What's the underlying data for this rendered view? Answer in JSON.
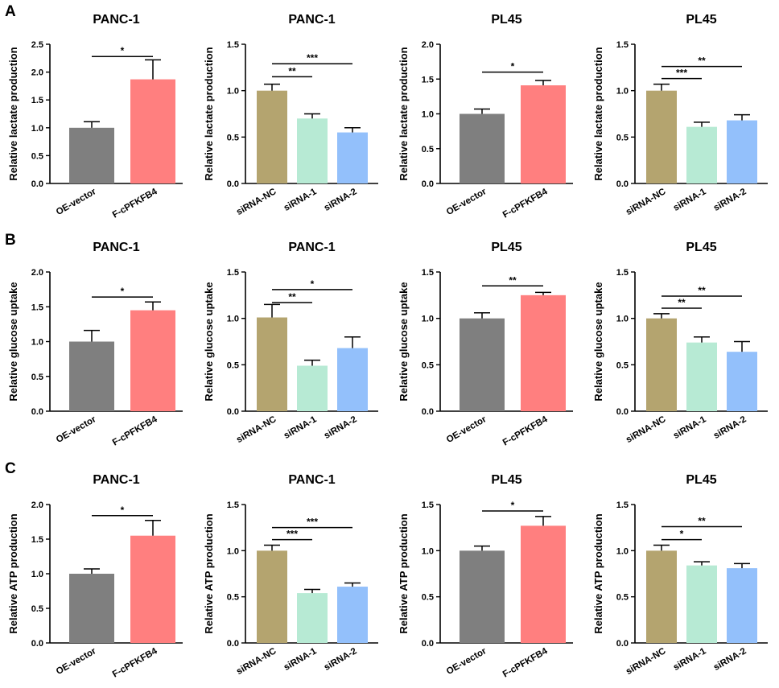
{
  "colors": {
    "oe_vector": "#7f7f7f",
    "f_cpfkfb4": "#ff7f7f",
    "sirna_nc": "#b4a46f",
    "sirna_1": "#b7ead4",
    "sirna_2": "#93c0fb"
  },
  "panel_labels": [
    "A",
    "B",
    "C"
  ],
  "chart_data": [
    {
      "type": "bar",
      "title": "PANC-1",
      "ylabel": "Relative lactate production",
      "ylim": [
        0,
        2.5
      ],
      "yticks": [
        "0.0",
        "0.5",
        "1.0",
        "1.5",
        "2.0",
        "2.5"
      ],
      "categories": [
        "OE-vector",
        "F-cPFKFB4"
      ],
      "values": [
        1.0,
        1.87
      ],
      "errors": [
        0.11,
        0.35
      ],
      "colors": [
        "#7f7f7f",
        "#ff7f7f"
      ],
      "significance": [
        {
          "from": 0,
          "to": 1,
          "y": 2.28,
          "label": "*"
        }
      ]
    },
    {
      "type": "bar",
      "title": "PANC-1",
      "ylabel": "Relative lactate production",
      "ylim": [
        0,
        1.5
      ],
      "yticks": [
        "0.0",
        "0.5",
        "1.0",
        "1.5"
      ],
      "categories": [
        "siRNA-NC",
        "siRNA-1",
        "siRNA-2"
      ],
      "values": [
        1.0,
        0.7,
        0.55
      ],
      "errors": [
        0.07,
        0.05,
        0.05
      ],
      "colors": [
        "#b4a46f",
        "#b7ead4",
        "#93c0fb"
      ],
      "significance": [
        {
          "from": 0,
          "to": 1,
          "y": 1.15,
          "label": "**"
        },
        {
          "from": 0,
          "to": 2,
          "y": 1.29,
          "label": "***"
        }
      ]
    },
    {
      "type": "bar",
      "title": "PL45",
      "ylabel": "Relative lactate production",
      "ylim": [
        0,
        2.0
      ],
      "yticks": [
        "0.0",
        "0.5",
        "1.0",
        "1.5",
        "2.0"
      ],
      "categories": [
        "OE-vector",
        "F-cPFKFB4"
      ],
      "values": [
        1.0,
        1.41
      ],
      "errors": [
        0.07,
        0.07
      ],
      "colors": [
        "#7f7f7f",
        "#ff7f7f"
      ],
      "significance": [
        {
          "from": 0,
          "to": 1,
          "y": 1.6,
          "label": "*"
        }
      ]
    },
    {
      "type": "bar",
      "title": "PL45",
      "ylabel": "Relative lactate production",
      "ylim": [
        0,
        1.5
      ],
      "yticks": [
        "0.0",
        "0.5",
        "1.0",
        "1.5"
      ],
      "categories": [
        "siRNA-NC",
        "siRNA-1",
        "siRNA-2"
      ],
      "values": [
        1.0,
        0.61,
        0.68
      ],
      "errors": [
        0.07,
        0.05,
        0.06
      ],
      "colors": [
        "#b4a46f",
        "#b7ead4",
        "#93c0fb"
      ],
      "significance": [
        {
          "from": 0,
          "to": 1,
          "y": 1.13,
          "label": "***"
        },
        {
          "from": 0,
          "to": 2,
          "y": 1.26,
          "label": "**"
        }
      ]
    },
    {
      "type": "bar",
      "title": "PANC-1",
      "ylabel": "Relative glucose uptake",
      "ylim": [
        0,
        2.0
      ],
      "yticks": [
        "0.0",
        "0.5",
        "1.0",
        "1.5",
        "2.0"
      ],
      "categories": [
        "OE-vector",
        "F-cPFKFB4"
      ],
      "values": [
        1.0,
        1.45
      ],
      "errors": [
        0.16,
        0.12
      ],
      "colors": [
        "#7f7f7f",
        "#ff7f7f"
      ],
      "significance": [
        {
          "from": 0,
          "to": 1,
          "y": 1.64,
          "label": "*"
        }
      ]
    },
    {
      "type": "bar",
      "title": "PANC-1",
      "ylabel": "Relative glucose uptake",
      "ylim": [
        0,
        1.5
      ],
      "yticks": [
        "0.0",
        "0.5",
        "1.0",
        "1.5"
      ],
      "categories": [
        "siRNA-NC",
        "siRNA-1",
        "siRNA-2"
      ],
      "values": [
        1.01,
        0.49,
        0.68
      ],
      "errors": [
        0.14,
        0.06,
        0.12
      ],
      "colors": [
        "#b4a46f",
        "#b7ead4",
        "#93c0fb"
      ],
      "significance": [
        {
          "from": 0,
          "to": 1,
          "y": 1.17,
          "label": "**"
        },
        {
          "from": 0,
          "to": 2,
          "y": 1.31,
          "label": "*"
        }
      ]
    },
    {
      "type": "bar",
      "title": "PL45",
      "ylabel": "Relative glucose uptake",
      "ylim": [
        0,
        1.5
      ],
      "yticks": [
        "0.0",
        "0.5",
        "1.0",
        "1.5"
      ],
      "categories": [
        "OE-vector",
        "F-cPFKFB4"
      ],
      "values": [
        1.0,
        1.25
      ],
      "errors": [
        0.06,
        0.03
      ],
      "colors": [
        "#7f7f7f",
        "#ff7f7f"
      ],
      "significance": [
        {
          "from": 0,
          "to": 1,
          "y": 1.35,
          "label": "**"
        }
      ]
    },
    {
      "type": "bar",
      "title": "PL45",
      "ylabel": "Relative glucose uptake",
      "ylim": [
        0,
        1.5
      ],
      "yticks": [
        "0.0",
        "0.5",
        "1.0",
        "1.5"
      ],
      "categories": [
        "siRNA-NC",
        "siRNA-1",
        "siRNA-2"
      ],
      "values": [
        1.0,
        0.74,
        0.64
      ],
      "errors": [
        0.05,
        0.06,
        0.11
      ],
      "colors": [
        "#b4a46f",
        "#b7ead4",
        "#93c0fb"
      ],
      "significance": [
        {
          "from": 0,
          "to": 1,
          "y": 1.11,
          "label": "**"
        },
        {
          "from": 0,
          "to": 2,
          "y": 1.24,
          "label": "**"
        }
      ]
    },
    {
      "type": "bar",
      "title": "PANC-1",
      "ylabel": "Relative ATP production",
      "ylim": [
        0,
        2.0
      ],
      "yticks": [
        "0.0",
        "0.5",
        "1.0",
        "1.5",
        "2.0"
      ],
      "categories": [
        "OE-vector",
        "F-cPFKFB4"
      ],
      "values": [
        1.0,
        1.55
      ],
      "errors": [
        0.07,
        0.22
      ],
      "colors": [
        "#7f7f7f",
        "#ff7f7f"
      ],
      "significance": [
        {
          "from": 0,
          "to": 1,
          "y": 1.84,
          "label": "*"
        }
      ]
    },
    {
      "type": "bar",
      "title": "PANC-1",
      "ylabel": "Relative ATP production",
      "ylim": [
        0,
        1.5
      ],
      "yticks": [
        "0.0",
        "0.5",
        "1.0",
        "1.5"
      ],
      "categories": [
        "siRNA-NC",
        "siRNA-1",
        "siRNA-2"
      ],
      "values": [
        1.0,
        0.54,
        0.61
      ],
      "errors": [
        0.06,
        0.04,
        0.04
      ],
      "colors": [
        "#b4a46f",
        "#b7ead4",
        "#93c0fb"
      ],
      "significance": [
        {
          "from": 0,
          "to": 1,
          "y": 1.12,
          "label": "***"
        },
        {
          "from": 0,
          "to": 2,
          "y": 1.25,
          "label": "***"
        }
      ]
    },
    {
      "type": "bar",
      "title": "PL45",
      "ylabel": "Relative ATP production",
      "ylim": [
        0,
        1.5
      ],
      "yticks": [
        "0.0",
        "0.5",
        "1.0",
        "1.5"
      ],
      "categories": [
        "OE-vector",
        "F-cPFKFB4"
      ],
      "values": [
        1.0,
        1.27
      ],
      "errors": [
        0.05,
        0.1
      ],
      "colors": [
        "#7f7f7f",
        "#ff7f7f"
      ],
      "significance": [
        {
          "from": 0,
          "to": 1,
          "y": 1.43,
          "label": "*"
        }
      ]
    },
    {
      "type": "bar",
      "title": "PL45",
      "ylabel": "Relative ATP production",
      "ylim": [
        0,
        1.5
      ],
      "yticks": [
        "0.0",
        "0.5",
        "1.0",
        "1.5"
      ],
      "categories": [
        "siRNA-NC",
        "siRNA-1",
        "siRNA-2"
      ],
      "values": [
        1.0,
        0.84,
        0.81
      ],
      "errors": [
        0.06,
        0.04,
        0.05
      ],
      "colors": [
        "#b4a46f",
        "#b7ead4",
        "#93c0fb"
      ],
      "significance": [
        {
          "from": 0,
          "to": 1,
          "y": 1.12,
          "label": "*"
        },
        {
          "from": 0,
          "to": 2,
          "y": 1.26,
          "label": "**"
        }
      ]
    }
  ]
}
